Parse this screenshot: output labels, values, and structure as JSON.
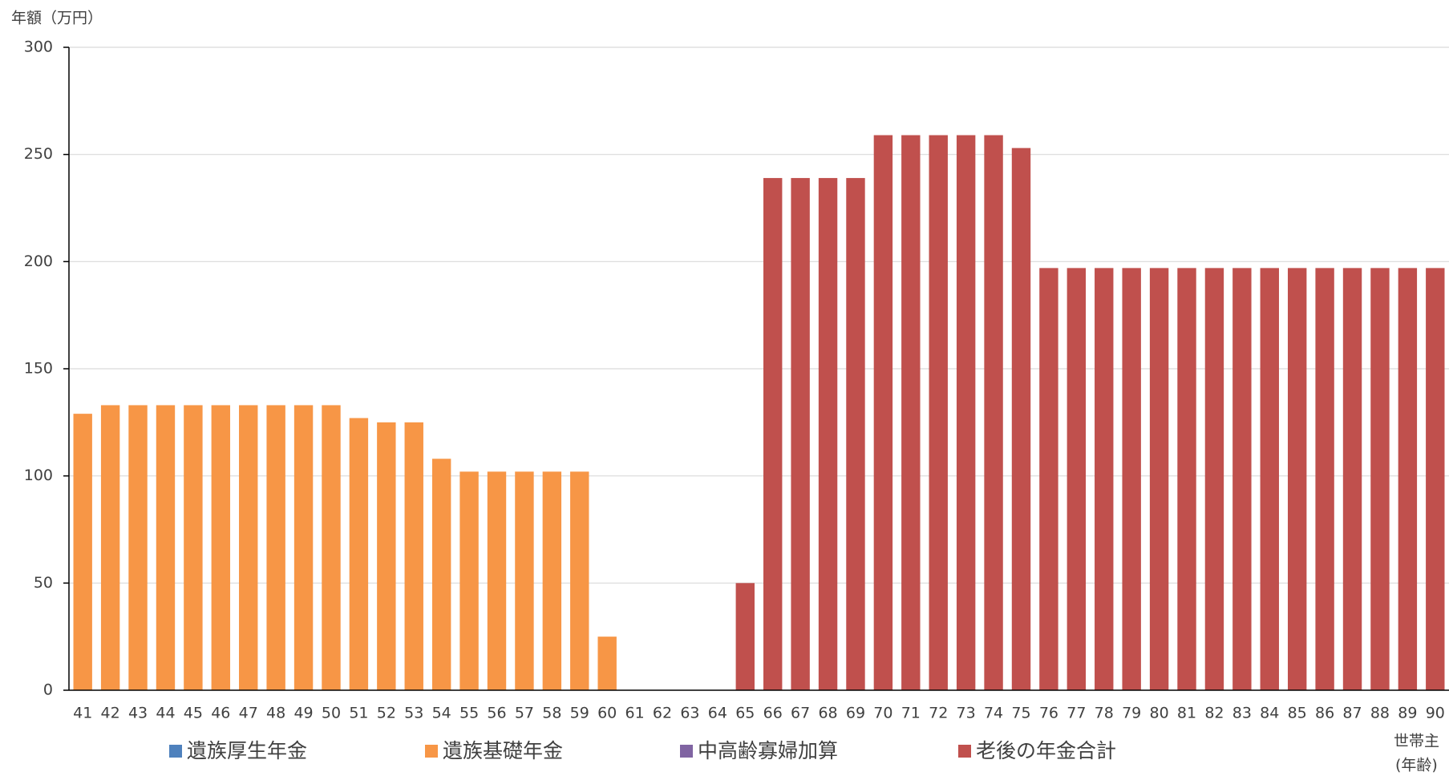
{
  "chart_data": {
    "type": "bar",
    "stacked": true,
    "y_label": "年額（万円）",
    "x_label": [
      "世帯主",
      "(年齢)"
    ],
    "categories": [
      "41",
      "42",
      "43",
      "44",
      "45",
      "46",
      "47",
      "48",
      "49",
      "50",
      "51",
      "52",
      "53",
      "54",
      "55",
      "56",
      "57",
      "58",
      "59",
      "60",
      "61",
      "62",
      "63",
      "64",
      "65",
      "66",
      "67",
      "68",
      "69",
      "70",
      "71",
      "72",
      "73",
      "74",
      "75",
      "76",
      "77",
      "78",
      "79",
      "80",
      "81",
      "82",
      "83",
      "84",
      "85",
      "86",
      "87",
      "88",
      "89",
      "90"
    ],
    "series": [
      {
        "name": "遺族厚生年金",
        "color": "#4e81bd",
        "values": [
          0,
          0,
          0,
          0,
          0,
          0,
          0,
          0,
          0,
          0,
          0,
          0,
          0,
          0,
          0,
          0,
          0,
          0,
          0,
          0,
          0,
          0,
          0,
          0,
          0,
          0,
          0,
          0,
          0,
          0,
          0,
          0,
          0,
          0,
          0,
          0,
          0,
          0,
          0,
          0,
          0,
          0,
          0,
          0,
          0,
          0,
          0,
          0,
          0,
          0
        ]
      },
      {
        "name": "遺族基礎年金",
        "color": "#f79646",
        "values": [
          129,
          133,
          133,
          133,
          133,
          133,
          133,
          133,
          133,
          133,
          127,
          125,
          125,
          108,
          102,
          102,
          102,
          102,
          102,
          25,
          0,
          0,
          0,
          0,
          0,
          0,
          0,
          0,
          0,
          0,
          0,
          0,
          0,
          0,
          0,
          0,
          0,
          0,
          0,
          0,
          0,
          0,
          0,
          0,
          0,
          0,
          0,
          0,
          0,
          0
        ]
      },
      {
        "name": "中高齢寡婦加算",
        "color": "#8064a2",
        "values": [
          0,
          0,
          0,
          0,
          0,
          0,
          0,
          0,
          0,
          0,
          0,
          0,
          0,
          0,
          0,
          0,
          0,
          0,
          0,
          0,
          0,
          0,
          0,
          0,
          0,
          0,
          0,
          0,
          0,
          0,
          0,
          0,
          0,
          0,
          0,
          0,
          0,
          0,
          0,
          0,
          0,
          0,
          0,
          0,
          0,
          0,
          0,
          0,
          0,
          0
        ]
      },
      {
        "name": "老後の年金合計",
        "color": "#c0504d",
        "values": [
          0,
          0,
          0,
          0,
          0,
          0,
          0,
          0,
          0,
          0,
          0,
          0,
          0,
          0,
          0,
          0,
          0,
          0,
          0,
          0,
          0,
          0,
          0,
          0,
          50,
          239,
          239,
          239,
          239,
          259,
          259,
          259,
          259,
          259,
          253,
          197,
          197,
          197,
          197,
          197,
          197,
          197,
          197,
          197,
          197,
          197,
          197,
          197,
          197,
          197
        ]
      }
    ],
    "ylim": [
      0,
      300
    ],
    "yticks": [
      0,
      50,
      100,
      150,
      200,
      250,
      300
    ],
    "grid": true
  }
}
